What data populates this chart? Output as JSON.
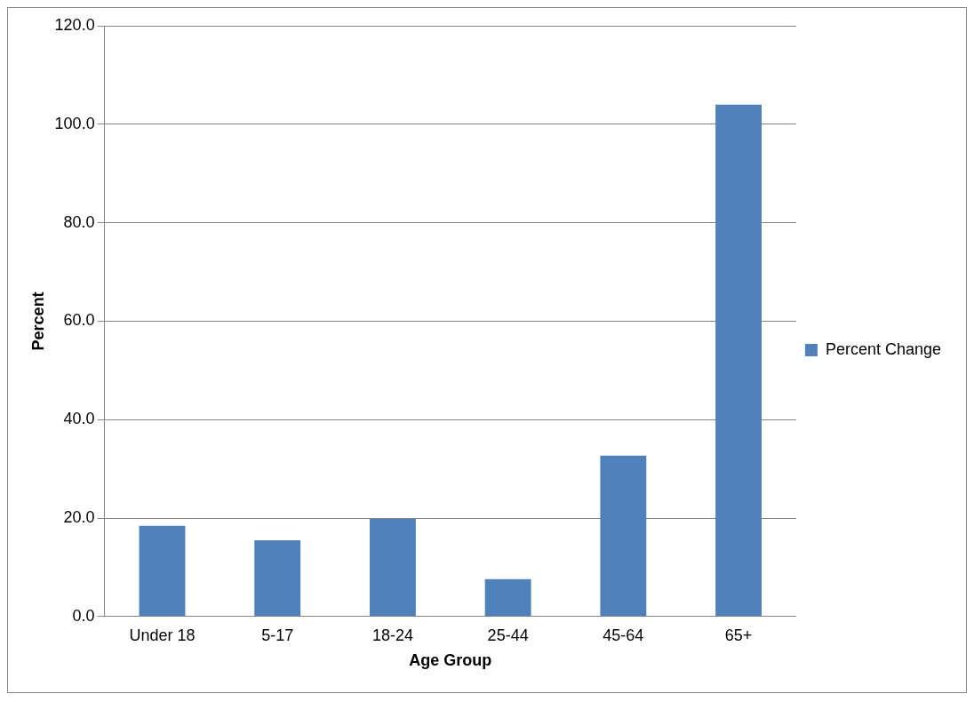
{
  "chart_data": {
    "type": "bar",
    "xlabel": "Age Group",
    "ylabel": "Percent",
    "categories": [
      "Under 18",
      "5-17",
      "18-24",
      "25-44",
      "45-64",
      "65+"
    ],
    "series": [
      {
        "name": "Percent Change",
        "color": "#4f81bd",
        "values": [
          18.4,
          15.5,
          19.8,
          7.6,
          32.7,
          104.0
        ]
      }
    ],
    "ylim": [
      0,
      120
    ],
    "yticks": [
      {
        "value": 0,
        "label": "0.0"
      },
      {
        "value": 20,
        "label": "20.0"
      },
      {
        "value": 40,
        "label": "40.0"
      },
      {
        "value": 60,
        "label": "60.0"
      },
      {
        "value": 80,
        "label": "80.0"
      },
      {
        "value": 100,
        "label": "100.0"
      },
      {
        "value": 120,
        "label": "120.0"
      }
    ],
    "grid": "y",
    "legend": "right"
  }
}
